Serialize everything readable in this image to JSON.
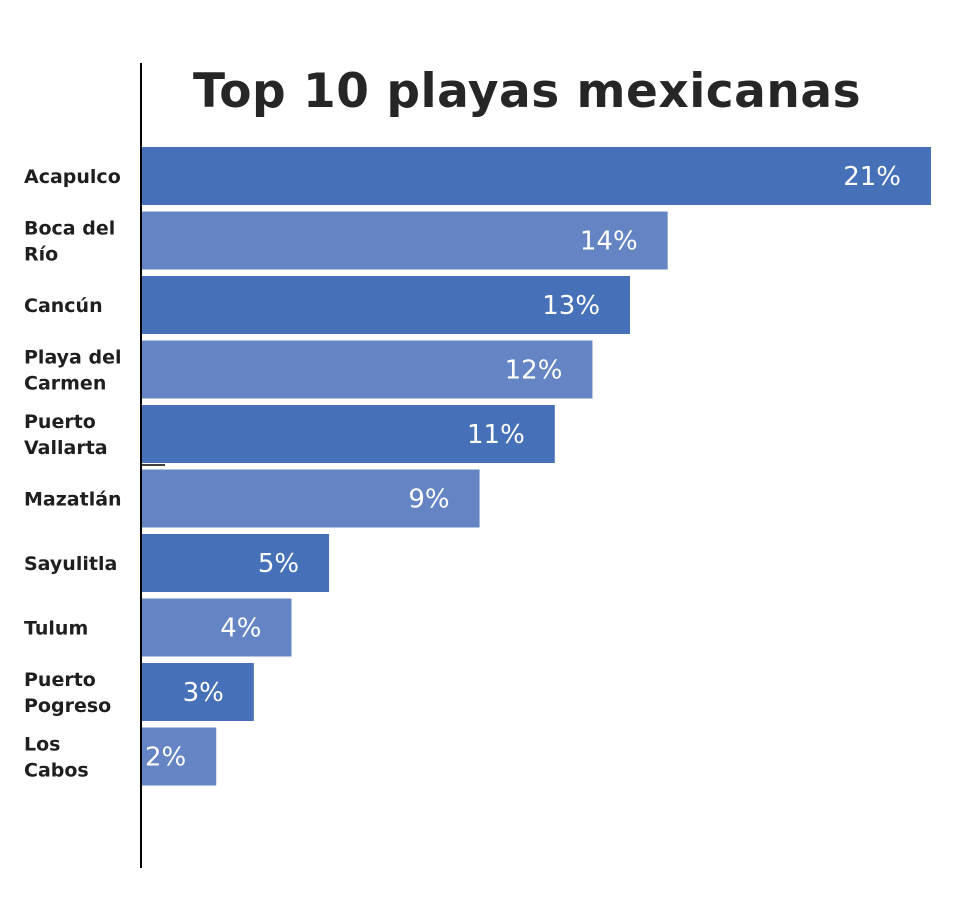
{
  "chart_data": {
    "type": "bar",
    "orientation": "horizontal",
    "title": "Top 10 playas mexicanas",
    "categories": [
      [
        "Acapulco"
      ],
      [
        "Boca del",
        "Río"
      ],
      [
        "Cancún"
      ],
      [
        "Playa del",
        "Carmen"
      ],
      [
        "Puerto",
        "Vallarta"
      ],
      [
        "Mazatlán"
      ],
      [
        "Sayulitla"
      ],
      [
        "Tulum"
      ],
      [
        "Puerto",
        "Pogreso"
      ],
      [
        "Los",
        "Cabos"
      ]
    ],
    "values": [
      21,
      14,
      13,
      12,
      11,
      9,
      5,
      4,
      3,
      2
    ],
    "value_labels": [
      "21%",
      "14%",
      "13%",
      "12%",
      "11%",
      "9%",
      "5%",
      "4%",
      "3%",
      "2%"
    ],
    "xlim": [
      0,
      21
    ],
    "grid": false,
    "legend": "none",
    "colors": {
      "bar_dark": "#4671b8",
      "bar_light": "#6484c3",
      "axis": "#000000",
      "title": "#262626",
      "label": "#1f1f1f",
      "value_text": "#ffffff"
    }
  }
}
